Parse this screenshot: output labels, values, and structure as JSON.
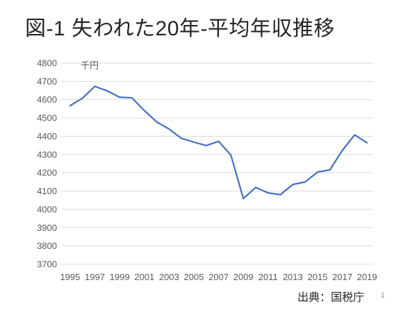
{
  "slide": {
    "title": "図-1 失われた20年-平均年収推移",
    "source": "出典：国税庁",
    "page_number": "1"
  },
  "chart_data": {
    "type": "line",
    "title": "図-1 失われた20年-平均年収推移",
    "unit_label": "千円",
    "ylabel": "千円",
    "xlabel": "",
    "x": [
      1995,
      1996,
      1997,
      1998,
      1999,
      2000,
      2001,
      2002,
      2003,
      2004,
      2005,
      2006,
      2007,
      2008,
      2009,
      2010,
      2011,
      2012,
      2013,
      2014,
      2015,
      2016,
      2017,
      2018,
      2019
    ],
    "series": [
      {
        "name": "平均年収",
        "values": [
          4567,
          4608,
          4673,
          4648,
          4613,
          4610,
          4540,
          4478,
          4439,
          4388,
          4368,
          4349,
          4372,
          4296,
          4059,
          4120,
          4090,
          4080,
          4136,
          4150,
          4204,
          4216,
          4322,
          4407,
          4364
        ]
      }
    ],
    "ylim": [
      3700,
      4800
    ],
    "ytick_step": 100,
    "xtick_labels": [
      "1995",
      "1997",
      "1999",
      "2001",
      "2003",
      "2005",
      "2007",
      "2009",
      "2011",
      "2013",
      "2015",
      "2017",
      "2019"
    ],
    "grid": "horizontal",
    "legend": "none",
    "line_color": "#4472C4",
    "gridline_color": "#D9D9D9",
    "tick_label_color": "#595959"
  }
}
